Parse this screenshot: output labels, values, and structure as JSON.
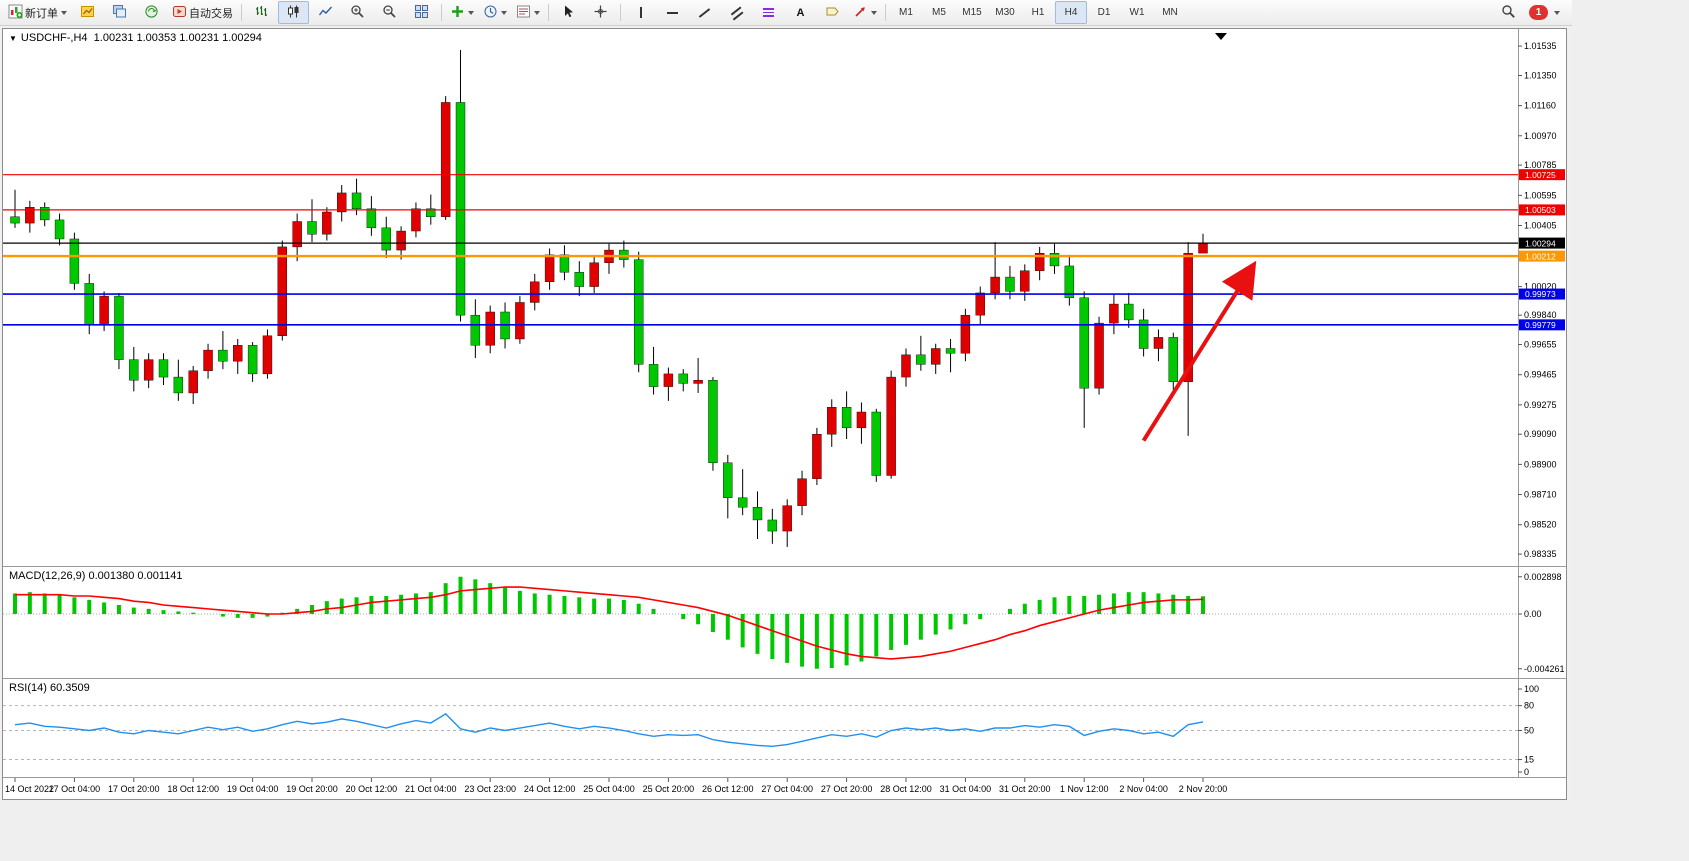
{
  "toolbar": {
    "new_order": "新订单",
    "autotrading": "自动交易",
    "timeframes": [
      "M1",
      "M5",
      "M15",
      "M30",
      "H1",
      "H4",
      "D1",
      "W1",
      "MN"
    ],
    "active_timeframe": "H4",
    "notification_count": "1"
  },
  "chart_data": [
    {
      "type": "candlestick",
      "symbol": "USDCHF-",
      "timeframe": "H4",
      "title": "USDCHF-,H4",
      "ohlc_text": "1.00231 1.00353 1.00231 1.00294",
      "open": 1.00231,
      "high": 1.00353,
      "low": 1.00231,
      "close": 1.00294,
      "colors": {
        "up": "#e00000",
        "down": "#00c800",
        "wick": "#000000"
      },
      "y_ticks": [
        "1.01535",
        "1.01350",
        "1.01160",
        "1.00970",
        "1.00785",
        "1.00595",
        "1.00405",
        "1.00020",
        "0.99840",
        "0.99655",
        "0.99465",
        "0.99275",
        "0.99090",
        "0.98900",
        "0.98710",
        "0.98520",
        "0.98335"
      ],
      "x_labels": [
        "14 Oct 2022",
        "17 Oct 04:00",
        "17 Oct 20:00",
        "18 Oct 12:00",
        "19 Oct 04:00",
        "19 Oct 20:00",
        "20 Oct 12:00",
        "21 Oct 04:00",
        "23 Oct 23:00",
        "24 Oct 12:00",
        "25 Oct 04:00",
        "25 Oct 20:00",
        "26 Oct 12:00",
        "27 Oct 04:00",
        "27 Oct 20:00",
        "28 Oct 12:00",
        "31 Oct 04:00",
        "31 Oct 20:00",
        "1 Nov 12:00",
        "2 Nov 04:00",
        "2 Nov 20:00"
      ],
      "x_label_every": 4,
      "hlines": [
        {
          "price": 1.00725,
          "label": "1.00725",
          "color": "#f00000",
          "width": 1.2
        },
        {
          "price": 1.00503,
          "label": "1.00503",
          "color": "#f00000",
          "width": 1.2
        },
        {
          "price": 1.00294,
          "label": "1.00294",
          "color": "#000000",
          "width": 1.2
        },
        {
          "price": 1.00212,
          "label": "1.00212",
          "color": "#ff9800",
          "width": 2.4
        },
        {
          "price": 0.99973,
          "label": "0.99973",
          "color": "#0000e8",
          "width": 1.6
        },
        {
          "price": 0.99779,
          "label": "0.99779",
          "color": "#0000e8",
          "width": 1.6
        }
      ],
      "arrow": {
        "from_bar": 76,
        "from_price": 0.9905,
        "to_bar": 83.3,
        "to_price": 1.0014,
        "color": "#e81010"
      },
      "candles": [
        [
          1.0046,
          1.0063,
          1.0039,
          1.0042
        ],
        [
          1.0042,
          1.0056,
          1.0036,
          1.0052
        ],
        [
          1.0052,
          1.0055,
          1.004,
          1.0044
        ],
        [
          1.0044,
          1.0048,
          1.0028,
          1.0032
        ],
        [
          1.0032,
          1.0036,
          1.0,
          1.0004
        ],
        [
          1.0004,
          1.001,
          0.9972,
          0.9978
        ],
        [
          0.9978,
          0.9999,
          0.9974,
          0.9996
        ],
        [
          0.9996,
          0.9998,
          0.995,
          0.9956
        ],
        [
          0.9956,
          0.9964,
          0.9936,
          0.9943
        ],
        [
          0.9943,
          0.996,
          0.9938,
          0.9956
        ],
        [
          0.9956,
          0.996,
          0.994,
          0.9945
        ],
        [
          0.9945,
          0.9956,
          0.993,
          0.9935
        ],
        [
          0.9935,
          0.9952,
          0.9928,
          0.9949
        ],
        [
          0.9949,
          0.9966,
          0.9944,
          0.9962
        ],
        [
          0.9962,
          0.9974,
          0.995,
          0.9955
        ],
        [
          0.9955,
          0.9969,
          0.9947,
          0.9965
        ],
        [
          0.9965,
          0.9967,
          0.9942,
          0.9947
        ],
        [
          0.9947,
          0.9975,
          0.9944,
          0.9971
        ],
        [
          0.9971,
          1.0031,
          0.9968,
          1.0027
        ],
        [
          1.0027,
          1.0048,
          1.0018,
          1.0043
        ],
        [
          1.0043,
          1.0057,
          1.003,
          1.0035
        ],
        [
          1.0035,
          1.0052,
          1.0031,
          1.0049
        ],
        [
          1.0049,
          1.0066,
          1.0043,
          1.0061
        ],
        [
          1.0061,
          1.007,
          1.0047,
          1.0051
        ],
        [
          1.0051,
          1.0059,
          1.0034,
          1.0039
        ],
        [
          1.0039,
          1.0046,
          1.002,
          1.0025
        ],
        [
          1.0025,
          1.004,
          1.0019,
          1.0037
        ],
        [
          1.0037,
          1.0055,
          1.0033,
          1.0051
        ],
        [
          1.0051,
          1.006,
          1.0041,
          1.0046
        ],
        [
          1.0046,
          1.0122,
          1.0044,
          1.0118
        ],
        [
          1.0118,
          1.0151,
          0.998,
          0.9984
        ],
        [
          0.9984,
          0.9994,
          0.9957,
          0.9965
        ],
        [
          0.9965,
          0.999,
          0.996,
          0.9986
        ],
        [
          0.9986,
          0.9992,
          0.9963,
          0.9969
        ],
        [
          0.9969,
          0.9996,
          0.9966,
          0.9992
        ],
        [
          0.9992,
          1.001,
          0.9987,
          1.0005
        ],
        [
          1.0005,
          1.0026,
          1.0,
          1.0022
        ],
        [
          1.0022,
          1.0028,
          1.0006,
          1.0011
        ],
        [
          1.0011,
          1.0018,
          0.9996,
          1.0002
        ],
        [
          1.0002,
          1.0021,
          0.9998,
          1.0017
        ],
        [
          1.0017,
          1.0029,
          1.001,
          1.0025
        ],
        [
          1.0025,
          1.0031,
          1.0014,
          1.0019
        ],
        [
          1.0019,
          1.0024,
          0.9948,
          0.9953
        ],
        [
          0.9953,
          0.9964,
          0.9934,
          0.9939
        ],
        [
          0.9939,
          0.9951,
          0.993,
          0.9947
        ],
        [
          0.9947,
          0.995,
          0.9936,
          0.9941
        ],
        [
          0.9941,
          0.9957,
          0.9935,
          0.9943
        ],
        [
          0.9943,
          0.9945,
          0.9886,
          0.9891
        ],
        [
          0.9891,
          0.9896,
          0.9856,
          0.9869
        ],
        [
          0.9869,
          0.9887,
          0.9858,
          0.9863
        ],
        [
          0.9863,
          0.9873,
          0.9843,
          0.9855
        ],
        [
          0.9855,
          0.9862,
          0.984,
          0.9848
        ],
        [
          0.9848,
          0.9868,
          0.9838,
          0.9864
        ],
        [
          0.9864,
          0.9886,
          0.9858,
          0.9881
        ],
        [
          0.9881,
          0.9913,
          0.9877,
          0.9909
        ],
        [
          0.9909,
          0.9931,
          0.9901,
          0.9926
        ],
        [
          0.9926,
          0.9936,
          0.9906,
          0.9913
        ],
        [
          0.9913,
          0.9929,
          0.9903,
          0.9923
        ],
        [
          0.9923,
          0.9925,
          0.9879,
          0.9883
        ],
        [
          0.9883,
          0.9949,
          0.9881,
          0.9945
        ],
        [
          0.9945,
          0.9963,
          0.9939,
          0.9959
        ],
        [
          0.9959,
          0.9971,
          0.9949,
          0.9953
        ],
        [
          0.9953,
          0.9966,
          0.9947,
          0.9963
        ],
        [
          0.9963,
          0.9969,
          0.9948,
          0.996
        ],
        [
          0.996,
          0.9988,
          0.9955,
          0.9984
        ],
        [
          0.9984,
          1.0002,
          0.9978,
          0.9998
        ],
        [
          0.9998,
          1.003,
          0.9994,
          1.0008
        ],
        [
          1.0008,
          1.0015,
          0.9994,
          0.9999
        ],
        [
          0.9999,
          1.0016,
          0.9993,
          1.0012
        ],
        [
          1.0012,
          1.0027,
          1.0006,
          1.0023
        ],
        [
          1.0023,
          1.0029,
          1.001,
          1.0015
        ],
        [
          1.0015,
          1.0022,
          0.999,
          0.9995
        ],
        [
          0.9995,
          0.9999,
          0.9913,
          0.9938
        ],
        [
          0.9938,
          0.9983,
          0.9934,
          0.9979
        ],
        [
          0.9979,
          0.9997,
          0.9972,
          0.9991
        ],
        [
          0.9991,
          0.9998,
          0.9976,
          0.9981
        ],
        [
          0.9981,
          0.9988,
          0.9958,
          0.9963
        ],
        [
          0.9963,
          0.9975,
          0.9955,
          0.997
        ],
        [
          0.997,
          0.9973,
          0.9937,
          0.9942
        ],
        [
          0.9942,
          1.003,
          0.9908,
          1.0023
        ],
        [
          1.00231,
          1.00353,
          1.00231,
          1.00294
        ]
      ]
    },
    {
      "type": "macd",
      "title": "MACD(12,26,9) 0.001380 0.001141",
      "params": "12,26,9",
      "value": 0.00138,
      "signal_value": 0.001141,
      "y_ticks": [
        "0.002898",
        "0.00",
        "-0.004261"
      ],
      "colors": {
        "histogram": "#00c800",
        "signal": "#ff0000"
      },
      "histogram": [
        0.0016,
        0.0017,
        0.0016,
        0.0015,
        0.0013,
        0.0011,
        0.0009,
        0.0007,
        0.0005,
        0.0004,
        0.0003,
        0.0002,
        0.0001,
        0.0,
        -0.0002,
        -0.0003,
        -0.0003,
        -0.0002,
        0.0001,
        0.0004,
        0.0007,
        0.001,
        0.0012,
        0.0013,
        0.0014,
        0.0014,
        0.0015,
        0.0016,
        0.0017,
        0.0024,
        0.0029,
        0.0027,
        0.0024,
        0.0021,
        0.0018,
        0.0016,
        0.0015,
        0.0014,
        0.0013,
        0.0012,
        0.0012,
        0.0011,
        0.0008,
        0.0004,
        0.0,
        -0.0004,
        -0.0008,
        -0.0014,
        -0.002,
        -0.0026,
        -0.0031,
        -0.0035,
        -0.0038,
        -0.0041,
        -0.004261,
        -0.0042,
        -0.004,
        -0.0037,
        -0.0033,
        -0.0028,
        -0.0024,
        -0.002,
        -0.0016,
        -0.0012,
        -0.0008,
        -0.0004,
        0.0,
        0.0004,
        0.0008,
        0.0011,
        0.0013,
        0.0014,
        0.0014,
        0.0015,
        0.0016,
        0.0017,
        0.0017,
        0.0016,
        0.0015,
        0.0014,
        0.00138
      ],
      "signal": [
        0.0015,
        0.0015,
        0.0015,
        0.0015,
        0.0014,
        0.0014,
        0.0013,
        0.0012,
        0.001,
        0.0009,
        0.0007,
        0.0006,
        0.0005,
        0.0004,
        0.0003,
        0.0002,
        0.0001,
        0.0,
        0.0,
        0.0001,
        0.0002,
        0.0004,
        0.0005,
        0.0007,
        0.0009,
        0.001,
        0.0011,
        0.0012,
        0.0013,
        0.0015,
        0.0018,
        0.0019,
        0.002,
        0.0021,
        0.0021,
        0.002,
        0.0019,
        0.0018,
        0.0017,
        0.0016,
        0.0015,
        0.0014,
        0.0013,
        0.0011,
        0.0009,
        0.0007,
        0.0005,
        0.0002,
        -0.0001,
        -0.0005,
        -0.0009,
        -0.0013,
        -0.0017,
        -0.0021,
        -0.0025,
        -0.0028,
        -0.0031,
        -0.0033,
        -0.0034,
        -0.0035,
        -0.0034,
        -0.0033,
        -0.0031,
        -0.0029,
        -0.0026,
        -0.0023,
        -0.002,
        -0.0016,
        -0.0013,
        -0.0009,
        -0.0006,
        -0.0003,
        0.0,
        0.0003,
        0.0005,
        0.0007,
        0.0009,
        0.001,
        0.0011,
        0.0011,
        0.001141
      ]
    },
    {
      "type": "rsi",
      "title": "RSI(14) 60.3509",
      "period": 14,
      "value": 60.3509,
      "color": "#2090f0",
      "y_ticks": [
        "100",
        "80",
        "50",
        "15",
        "0"
      ],
      "levels": [
        80,
        50,
        15
      ],
      "values": [
        57,
        59,
        55,
        54,
        52,
        50,
        53,
        48,
        46,
        50,
        48,
        46,
        50,
        54,
        51,
        54,
        49,
        52,
        57,
        61,
        58,
        60,
        64,
        61,
        57,
        53,
        58,
        62,
        59,
        70,
        52,
        48,
        53,
        50,
        53,
        56,
        59,
        55,
        52,
        55,
        53,
        50,
        46,
        43,
        45,
        44,
        45,
        39,
        36,
        34,
        32,
        31,
        33,
        37,
        41,
        45,
        43,
        46,
        42,
        50,
        53,
        51,
        53,
        50,
        52,
        49,
        53,
        53,
        56,
        54,
        57,
        55,
        44,
        49,
        52,
        50,
        46,
        48,
        43,
        57,
        60.35
      ]
    }
  ]
}
